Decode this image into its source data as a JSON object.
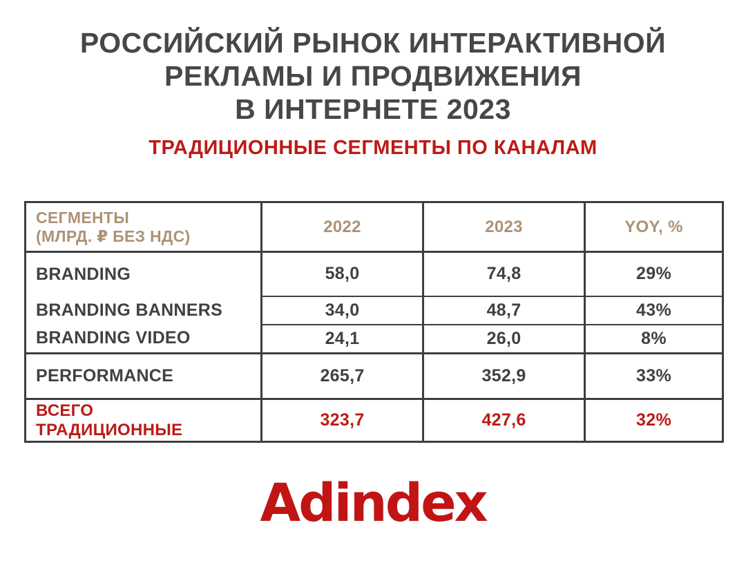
{
  "title": {
    "lines": [
      "РОССИЙСКИЙ РЫНОК ИНТЕРАКТИВНОЙ",
      "РЕКЛАМЫ И ПРОДВИЖЕНИЯ",
      "В ИНТЕРНЕТЕ 2023"
    ]
  },
  "subtitle": "ТРАДИЦИОННЫЕ СЕГМЕНТЫ ПО КАНАЛАМ",
  "table": {
    "headers": {
      "segments": [
        "СЕГМЕНТЫ",
        "(МЛРД. ₽ БЕЗ НДС)"
      ],
      "y2022": "2022",
      "y2023": "2023",
      "yoy": "YOY, %"
    },
    "rows": [
      {
        "label": "BRANDING",
        "v2022": "58,0",
        "v2023": "74,8",
        "yoy": "29%"
      },
      {
        "label": "BRANDING BANNERS",
        "v2022": "34,0",
        "v2023": "48,7",
        "yoy": "43%"
      },
      {
        "label": "BRANDING VIDEO",
        "v2022": "24,1",
        "v2023": "26,0",
        "yoy": "8%"
      },
      {
        "label": "PERFORMANCE",
        "v2022": "265,7",
        "v2023": "352,9",
        "yoy": "33%"
      },
      {
        "label": [
          "ВСЕГО",
          "ТРАДИЦИОННЫЕ"
        ],
        "v2022": "323,7",
        "v2023": "427,6",
        "yoy": "32%"
      }
    ]
  },
  "logo": {
    "text": "Adindex"
  },
  "colors": {
    "title_text": "#47474a",
    "table_text": "#414144",
    "table_border": "#3e3e41",
    "header_tan": "#ac9375",
    "accent_red": "#bb1b16",
    "logo_red": "#c11414",
    "background": "#ffffff"
  },
  "chart_data": {
    "type": "table",
    "title": "РОССИЙСКИЙ РЫНОК ИНТЕРАКТИВНОЙ РЕКЛАМЫ И ПРОДВИЖЕНИЯ В ИНТЕРНЕТЕ 2023",
    "subtitle": "ТРАДИЦИОННЫЕ СЕГМЕНТЫ ПО КАНАЛАМ",
    "units": "млрд ₽ без НДС",
    "columns": [
      "СЕГМЕНТЫ (МЛРД. ₽ БЕЗ НДС)",
      "2022",
      "2023",
      "YOY, %"
    ],
    "rows": [
      [
        "BRANDING",
        58.0,
        74.8,
        "29%"
      ],
      [
        "BRANDING BANNERS",
        34.0,
        48.7,
        "43%"
      ],
      [
        "BRANDING VIDEO",
        24.1,
        26.0,
        "8%"
      ],
      [
        "PERFORMANCE",
        265.7,
        352.9,
        "33%"
      ],
      [
        "ВСЕГО ТРАДИЦИОННЫЕ",
        323.7,
        427.6,
        "32%"
      ]
    ],
    "notes": "BRANDING BANNERS and BRANDING VIDEO are sub-segments of BRANDING; last row is total, highlighted in red",
    "source_logo": "Adindex"
  }
}
